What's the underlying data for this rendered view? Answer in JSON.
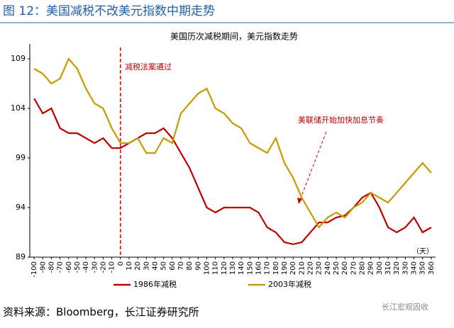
{
  "title": "图 12：美国减税不改美元指数中期走势",
  "source": "资料来源：Bloomberg，长江证券研究所",
  "watermark": "长江宏观固收",
  "chart_data": {
    "type": "line",
    "title": "美国历次减税期间，美元指数走势",
    "annotations": [
      "减税法案通过",
      "美联储开始加快加息节奏"
    ],
    "x_unit": "（天）",
    "x": [
      -100,
      -90,
      -80,
      -70,
      -60,
      -50,
      -40,
      -30,
      -20,
      -10,
      0,
      10,
      20,
      30,
      40,
      50,
      60,
      70,
      80,
      90,
      100,
      110,
      120,
      130,
      140,
      150,
      160,
      170,
      180,
      190,
      200,
      210,
      220,
      230,
      240,
      250,
      260,
      270,
      280,
      290,
      300,
      310,
      320,
      330,
      340,
      350,
      360
    ],
    "series": [
      {
        "name": "1986年减税",
        "color": "#c00000",
        "values": [
          105,
          103.5,
          104,
          102,
          101.5,
          101.5,
          101,
          100.5,
          101,
          100,
          100,
          100.5,
          101,
          101.5,
          101.5,
          102,
          101,
          99.5,
          98,
          96,
          94,
          93.5,
          94,
          94,
          94,
          94,
          93.5,
          92,
          91.5,
          90.5,
          90.3,
          90.5,
          91.5,
          92.5,
          92.5,
          93,
          93.2,
          94,
          95,
          95.5,
          94,
          92,
          91.5,
          92,
          93,
          91.5,
          92
        ]
      },
      {
        "name": "2003年减税",
        "color": "#c59b00",
        "values": [
          108,
          107.5,
          106.5,
          107,
          109,
          108,
          106,
          104.5,
          104,
          102,
          100.5,
          100.5,
          101,
          99.5,
          99.5,
          101,
          100.5,
          103.5,
          104.5,
          105.5,
          106,
          104,
          103.5,
          102.5,
          102,
          100.5,
          100,
          99.5,
          101,
          98.5,
          97,
          95,
          93.5,
          92,
          93,
          93.5,
          93,
          94,
          94.5,
          95.5,
          95,
          94.5,
          95.5,
          96.5,
          97.5,
          98.5,
          97.5
        ]
      }
    ],
    "xlim": [
      -105,
      365
    ],
    "xticks": [
      -100,
      -90,
      -80,
      -70,
      -60,
      -50,
      -40,
      -30,
      -20,
      -10,
      0,
      10,
      20,
      30,
      40,
      50,
      60,
      70,
      80,
      90,
      100,
      110,
      120,
      130,
      140,
      150,
      160,
      170,
      180,
      190,
      200,
      210,
      220,
      230,
      240,
      250,
      260,
      270,
      280,
      290,
      300,
      310,
      320,
      330,
      340,
      350,
      360
    ],
    "ylim": [
      89,
      110.5
    ],
    "yticks": [
      89,
      94,
      99,
      104,
      109
    ],
    "marker_x": 0
  }
}
